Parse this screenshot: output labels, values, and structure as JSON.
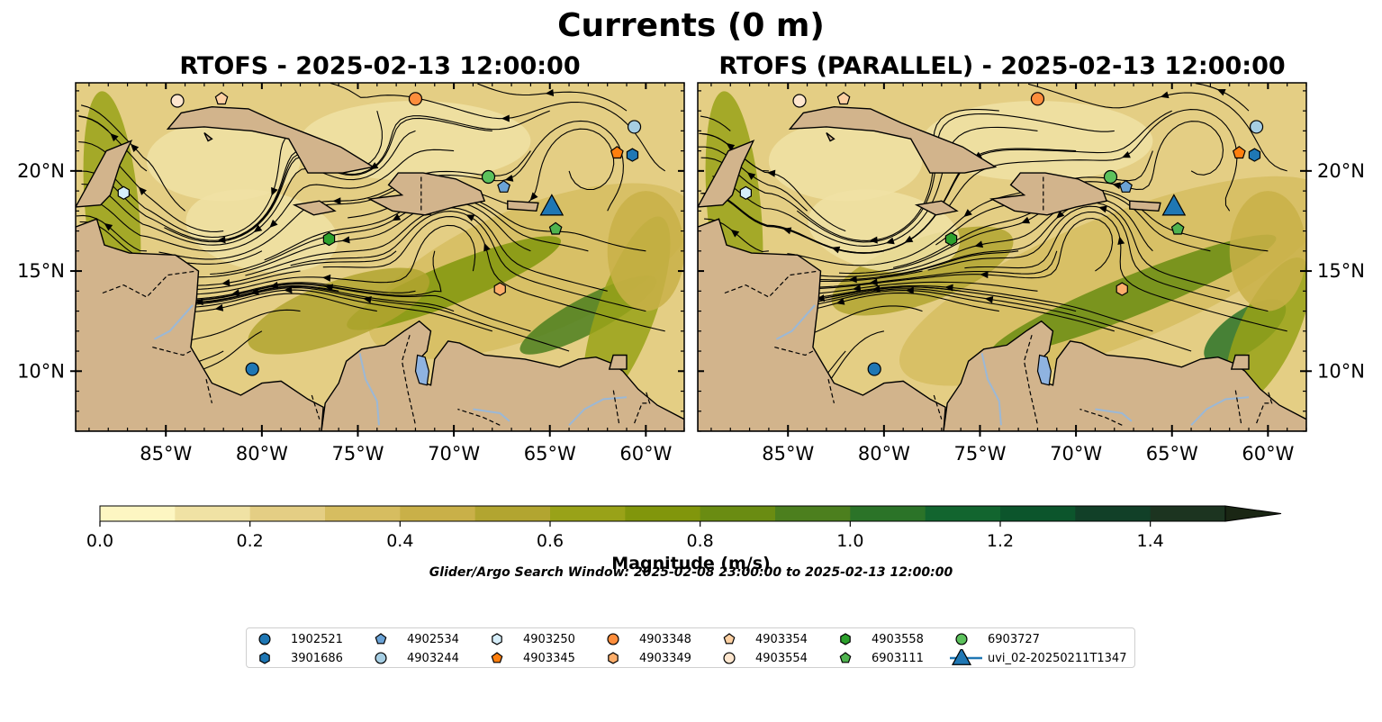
{
  "title": "Currents (0 m)",
  "panels": [
    {
      "title": "RTOFS - 2025-02-13 12:00:00"
    },
    {
      "title": "RTOFS (PARALLEL) - 2025-02-13 12:00:00"
    }
  ],
  "map": {
    "extent": {
      "lon_min": -89.7,
      "lon_max": -58.0,
      "lat_min": 7.0,
      "lat_max": 24.4
    },
    "lon_ticks": [
      -85,
      -80,
      -75,
      -70,
      -65,
      -60
    ],
    "lon_tick_labels": [
      "85°W",
      "80°W",
      "75°W",
      "70°W",
      "65°W",
      "60°W"
    ],
    "lat_ticks": [
      10,
      15,
      20
    ],
    "lat_tick_labels": [
      "10°N",
      "15°N",
      "20°N"
    ],
    "colors": {
      "land": "#d2b48c",
      "lake": "#8fb3e0",
      "coast": "#000000",
      "river": "#9bb8d6"
    }
  },
  "colorbar": {
    "label": "Magnitude (m/s)",
    "min": 0.0,
    "max": 1.5,
    "step": 0.1,
    "tick_values": [
      0.0,
      0.2,
      0.4,
      0.6,
      0.8,
      1.0,
      1.2,
      1.4
    ],
    "tick_labels": [
      "0.0",
      "0.2",
      "0.4",
      "0.6",
      "0.8",
      "1.0",
      "1.2",
      "1.4"
    ],
    "colors": [
      "#fdf6c2",
      "#f0e2a4",
      "#e4ce84",
      "#d6bd60",
      "#c9b048",
      "#b2a530",
      "#99a218",
      "#81960c",
      "#6a8c12",
      "#4c7f1e",
      "#2b7328",
      "#12652f",
      "#0c552c",
      "#114028",
      "#1c3420",
      "#1a2614"
    ],
    "extend": "max"
  },
  "search_window": "Glider/Argo Search Window: 2025-02-08 23:00:00 to 2025-02-13 12:00:00",
  "legend": [
    {
      "label": "1902521",
      "marker": "circle",
      "color": "#1f77b4",
      "lon": -80.5,
      "lat": 10.1
    },
    {
      "label": "3901686",
      "marker": "hexagon",
      "color": "#1f77b4",
      "lon": -60.7,
      "lat": 20.8
    },
    {
      "label": "4902534",
      "marker": "pentagon",
      "color": "#6ba3d6",
      "lon": -67.4,
      "lat": 19.2
    },
    {
      "label": "4903244",
      "marker": "circle",
      "color": "#a6cee3",
      "lon": -60.6,
      "lat": 22.2
    },
    {
      "label": "4903250",
      "marker": "hexagon",
      "color": "#d6eefa",
      "lon": -87.2,
      "lat": 18.9
    },
    {
      "label": "4903345",
      "marker": "pentagon",
      "color": "#ff7f0e",
      "lon": -61.5,
      "lat": 20.9
    },
    {
      "label": "4903348",
      "marker": "circle",
      "color": "#fd8d3c",
      "lon": -72.0,
      "lat": 23.6
    },
    {
      "label": "4903349",
      "marker": "hexagon",
      "color": "#fdae6b",
      "lon": -67.6,
      "lat": 14.1
    },
    {
      "label": "4903354",
      "marker": "pentagon",
      "color": "#fdd0a2",
      "lon": -82.1,
      "lat": 23.6
    },
    {
      "label": "4903554",
      "marker": "circle",
      "color": "#fee6ce",
      "lon": -84.4,
      "lat": 23.5
    },
    {
      "label": "4903558",
      "marker": "hexagon",
      "color": "#2ca02c",
      "lon": -76.5,
      "lat": 16.6
    },
    {
      "label": "6903111",
      "marker": "pentagon",
      "color": "#4fb34f",
      "lon": -64.7,
      "lat": 17.1
    },
    {
      "label": "6903727",
      "marker": "circle",
      "color": "#5cc15c",
      "lon": -68.2,
      "lat": 19.7
    },
    {
      "label": "uvi_02-20250211T1347",
      "marker": "triangle",
      "color": "#1f77b4",
      "lon": -64.9,
      "lat": 18.2
    }
  ]
}
